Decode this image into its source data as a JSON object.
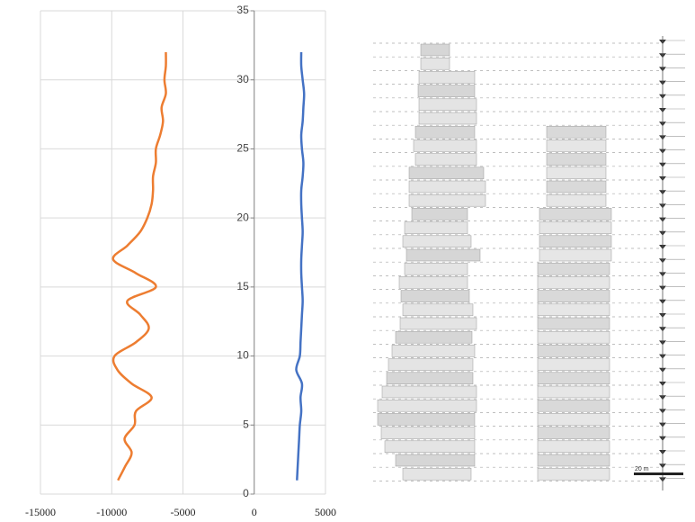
{
  "chart_data": {
    "type": "line",
    "y": [
      1,
      2,
      3,
      4,
      5,
      6,
      7,
      8,
      9,
      10,
      11,
      12,
      13,
      14,
      15,
      16,
      17,
      18,
      19,
      20,
      21,
      22,
      23,
      24,
      25,
      26,
      27,
      28,
      29,
      30,
      31,
      32
    ],
    "series": [
      {
        "color": "#ed7d31",
        "values": [
          -9560,
          -9060,
          -8600,
          -9100,
          -8400,
          -8300,
          -7200,
          -8600,
          -9600,
          -9800,
          -8300,
          -7400,
          -8000,
          -8900,
          -6900,
          -8300,
          -9900,
          -8900,
          -8000,
          -7500,
          -7200,
          -7100,
          -7100,
          -6900,
          -6900,
          -6600,
          -6400,
          -6500,
          -6200,
          -6300,
          -6200,
          -6200
        ]
      },
      {
        "color": "#4472c4",
        "values": [
          3000,
          3050,
          3100,
          3150,
          3200,
          3300,
          3250,
          3350,
          2950,
          3200,
          3250,
          3300,
          3350,
          3400,
          3350,
          3300,
          3300,
          3350,
          3400,
          3350,
          3300,
          3300,
          3400,
          3450,
          3350,
          3300,
          3400,
          3450,
          3500,
          3400,
          3300,
          3300
        ]
      }
    ],
    "xlim": [
      -15000,
      5000
    ],
    "xticks": [
      -15000,
      -10000,
      -5000,
      0,
      5000
    ],
    "ylim": [
      0,
      35
    ],
    "yticks": [
      0,
      5,
      10,
      15,
      20,
      25,
      30,
      35
    ],
    "grid": true
  },
  "drawing": {
    "scale_label": "20 m"
  }
}
